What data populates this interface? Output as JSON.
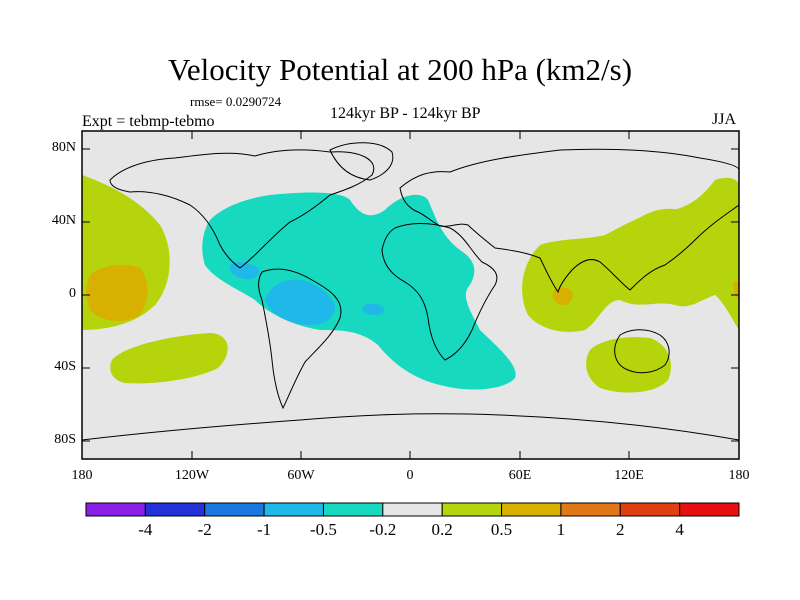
{
  "title": "Velocity Potential at 200 hPa (km2/s)",
  "rmse_label": "rmse= 0.0290724",
  "experiment_label": "Expt = tebmp-tebmo",
  "period_label": "124kyr BP - 124kyr BP",
  "season_label": "JJA",
  "lat_axis": [
    "80N",
    "40N",
    "0",
    "40S",
    "80S"
  ],
  "lon_axis": [
    "180",
    "120W",
    "60W",
    "0",
    "60E",
    "120E",
    "180"
  ],
  "colorbar": {
    "labels": [
      "-4",
      "-2",
      "-1",
      "-0.5",
      "-0.2",
      "0.2",
      "0.5",
      "1",
      "2",
      "4"
    ],
    "colors": [
      "#8a1fe8",
      "#2430d8",
      "#1a78e0",
      "#20b8e8",
      "#16d9c0",
      "#e6e6e6",
      "#b6d40c",
      "#d8b000",
      "#e07818",
      "#e04010",
      "#e61010"
    ]
  },
  "chart_data": {
    "type": "heatmap",
    "title": "Velocity Potential at 200 hPa (km2/s)",
    "projection": "cylindrical-equidistant",
    "lon_range": [
      -180,
      180
    ],
    "lat_range": [
      -90,
      90
    ],
    "contour_levels": [
      -4,
      -2,
      -1,
      -0.5,
      -0.2,
      0.2,
      0.5,
      1,
      2,
      4
    ],
    "regions": [
      {
        "name": "Atlantic-Americas negative anomaly",
        "class": "-0.5 to -0.2"
      },
      {
        "name": "Central Pacific positive anomaly",
        "class": "0.2 to 0.5"
      },
      {
        "name": "Central Pacific maximum",
        "class": "0.5 to 1"
      },
      {
        "name": "Indian Ocean positive anomaly",
        "class": "0.2 to 0.5"
      },
      {
        "name": "Bay of Bengal maximum",
        "class": "0.5 to 1"
      },
      {
        "name": "Australia positive anomaly",
        "class": "0.2 to 0.5"
      },
      {
        "name": "South Pacific positive anomaly",
        "class": "0.2 to 0.5"
      },
      {
        "name": "Western Pacific positive anomaly",
        "class": "0.2 to 0.5"
      },
      {
        "name": "Amazon minimum",
        "class": "-1 to -0.5"
      },
      {
        "name": "Caribbean minimum",
        "class": "-1 to -0.5"
      }
    ]
  }
}
